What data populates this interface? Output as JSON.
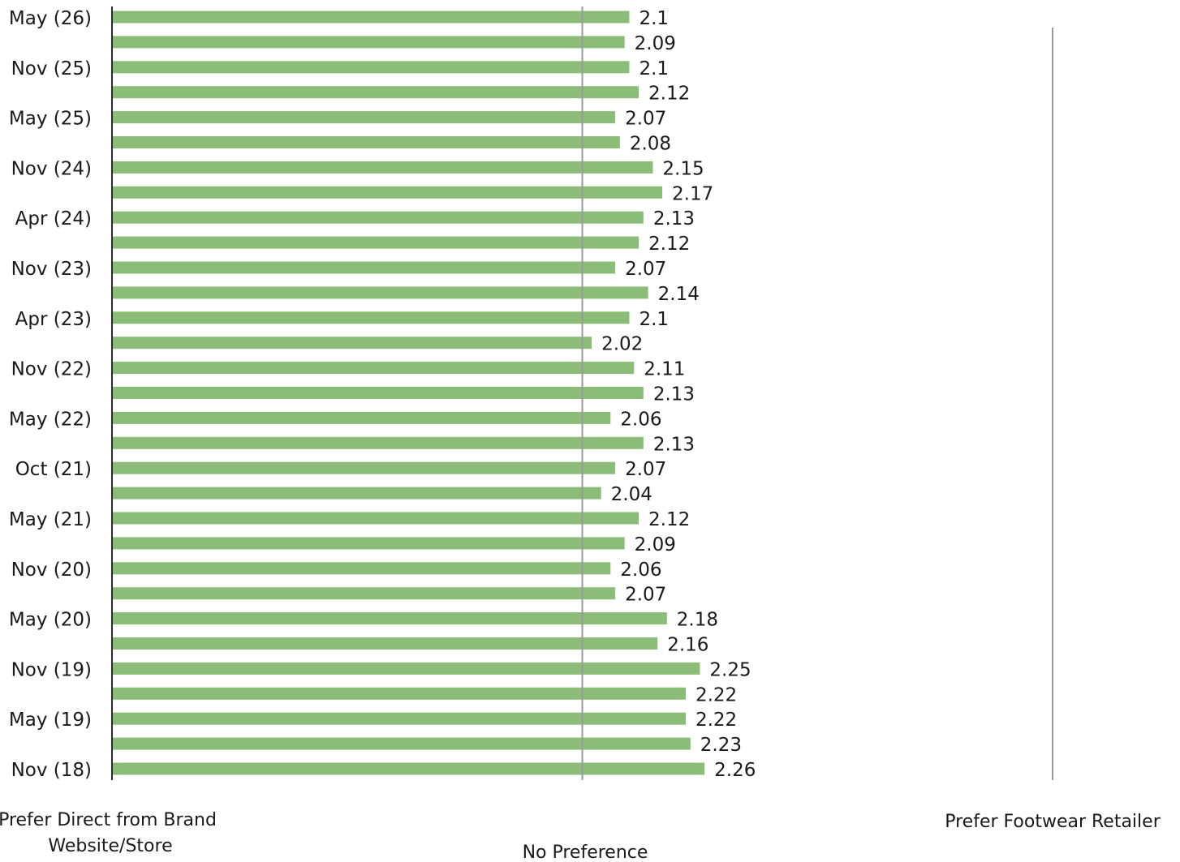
{
  "chart_data": {
    "type": "bar",
    "orientation": "horizontal",
    "categories": [
      "May (26)",
      "",
      "Nov (25)",
      "",
      "May (25)",
      "",
      "Nov (24)",
      "",
      "Apr (24)",
      "",
      "Nov (23)",
      "",
      "Apr (23)",
      "",
      "Nov (22)",
      "",
      "May (22)",
      "",
      "Oct (21)",
      "",
      "May (21)",
      "",
      "Nov (20)",
      "",
      "May (20)",
      "",
      "Nov (19)",
      "",
      "May (19)",
      "",
      "Nov (18)"
    ],
    "values": [
      2.1,
      2.09,
      2.1,
      2.12,
      2.07,
      2.08,
      2.15,
      2.17,
      2.13,
      2.12,
      2.07,
      2.14,
      2.1,
      2.02,
      2.11,
      2.13,
      2.06,
      2.13,
      2.07,
      2.04,
      2.12,
      2.09,
      2.06,
      2.07,
      2.18,
      2.16,
      2.25,
      2.22,
      2.22,
      2.23,
      2.26
    ],
    "data_labels": [
      "2.1",
      "2.09",
      "2.1",
      "2.12",
      "2.07",
      "2.08",
      "2.15",
      "2.17",
      "2.13",
      "2.12",
      "2.07",
      "2.14",
      "2.1",
      "2.02",
      "2.11",
      "2.13",
      "2.06",
      "2.13",
      "2.07",
      "2.04",
      "2.12",
      "2.09",
      "2.06",
      "2.07",
      "2.18",
      "2.16",
      "2.25",
      "2.22",
      "2.22",
      "2.23",
      "2.26"
    ],
    "xlim": [
      1,
      3
    ],
    "reference_line": 2,
    "bar_color": "#8bbd78",
    "axis_labels": {
      "left": "Prefer Direct from Brand Website/Store",
      "center": "No Preference",
      "right": "Prefer Footwear Retailer"
    },
    "grid": false,
    "legend": "none"
  }
}
